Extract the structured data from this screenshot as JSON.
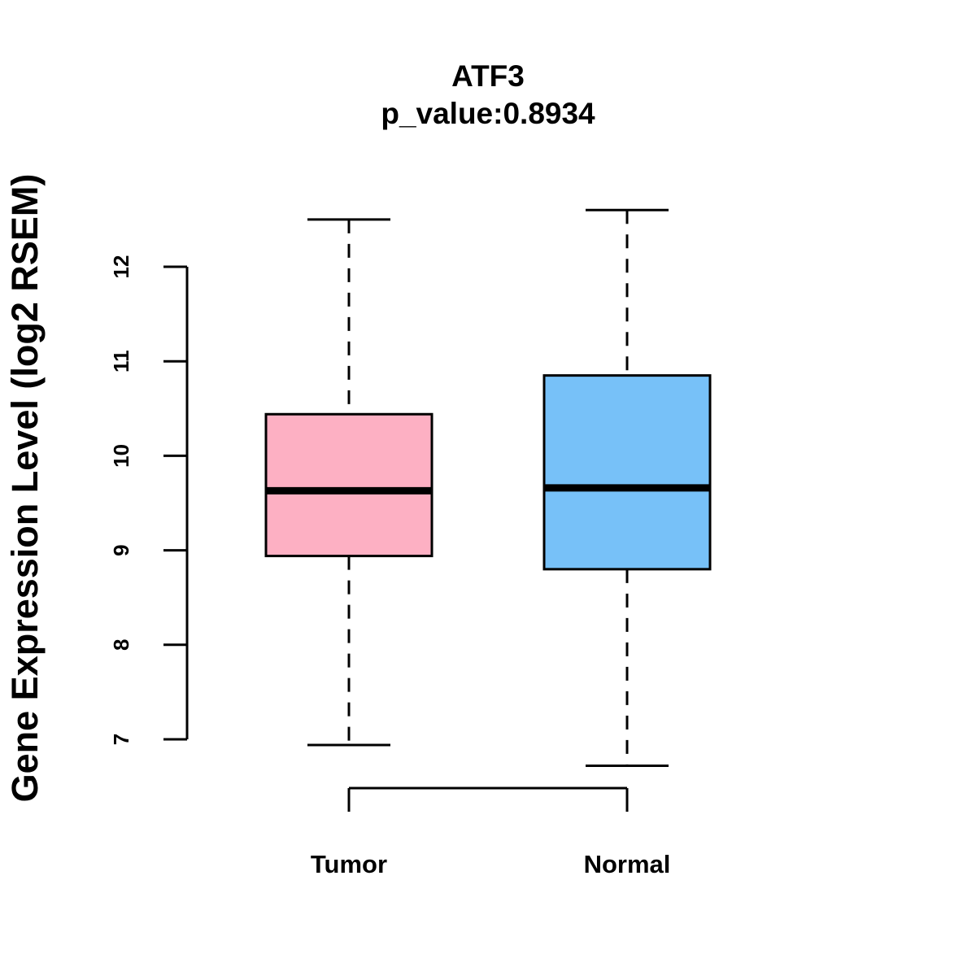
{
  "chart_data": {
    "type": "box",
    "title": "ATF3",
    "subtitle": "p_value:0.8934",
    "xlabel": "",
    "ylabel": "Gene Expression Level (log2 RSEM)",
    "ylim": [
      7,
      12
    ],
    "yticks": [
      7,
      8,
      9,
      10,
      11,
      12
    ],
    "categories": [
      "Tumor",
      "Normal"
    ],
    "series": [
      {
        "name": "Tumor",
        "min": 6.94,
        "q1": 8.94,
        "median": 9.63,
        "q3": 10.44,
        "max": 12.5,
        "color": "#FDB0C3"
      },
      {
        "name": "Normal",
        "min": 6.72,
        "q1": 8.8,
        "median": 9.66,
        "q3": 10.85,
        "max": 12.6,
        "color": "#77C1F8"
      }
    ]
  }
}
